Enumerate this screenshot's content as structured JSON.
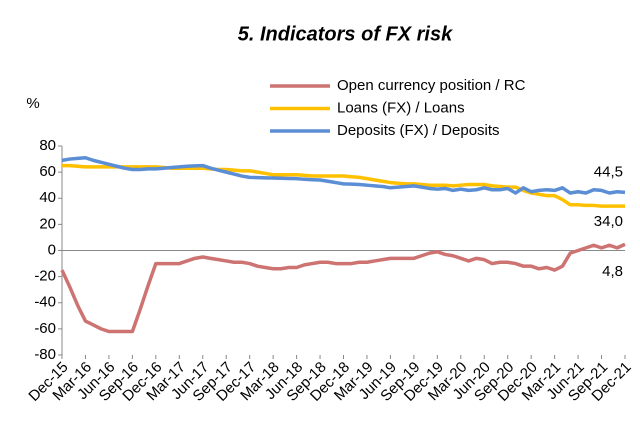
{
  "chart_data": {
    "type": "line",
    "title": "5. Indicators of FX risk",
    "y_label": "%",
    "categories": [
      "Dec-15",
      null,
      null,
      "Mar-16",
      null,
      null,
      "Jun-16",
      null,
      null,
      "Sep-16",
      null,
      null,
      "Dec-16",
      null,
      null,
      "Mar-17",
      null,
      null,
      "Jun-17",
      null,
      null,
      "Sep-17",
      null,
      null,
      "Dec-17",
      null,
      null,
      "Mar-18",
      null,
      null,
      "Jun-18",
      null,
      null,
      "Sep-18",
      null,
      null,
      "Dec-18",
      null,
      null,
      "Mar-19",
      null,
      null,
      "Jun-19",
      null,
      null,
      "Sep-19",
      null,
      null,
      "Dec-19",
      null,
      null,
      "Mar-20",
      null,
      null,
      "Jun-20",
      null,
      null,
      "Sep-20",
      null,
      null,
      "Dec-20",
      null,
      null,
      "Mar-21",
      null,
      null,
      "Jun-21",
      null,
      null,
      "Sep-21",
      null,
      null,
      "Dec-21"
    ],
    "series": [
      {
        "name": "Open currency position / RC",
        "color": "#cd7371",
        "values": [
          -15,
          -28,
          -42,
          -54,
          -57,
          -60,
          -62,
          -62,
          -62,
          -62,
          -45,
          -27,
          -10,
          -10,
          -10,
          -10,
          -8,
          -6,
          -5,
          -6,
          -7,
          -8,
          -9,
          -9,
          -10,
          -12,
          -13,
          -14,
          -14,
          -13,
          -13,
          -11,
          -10,
          -9,
          -9,
          -10,
          -10,
          -10,
          -9,
          -9,
          -8,
          -7,
          -6,
          -6,
          -6,
          -6,
          -4,
          -2,
          -1,
          -3,
          -4,
          -6,
          -8,
          -6,
          -7,
          -10,
          -9,
          -9,
          -10,
          -12,
          -12,
          -14,
          -13,
          -15,
          -12,
          -2,
          0,
          2,
          4,
          2,
          4,
          2,
          4.8
        ],
        "value_labels": [
          null,
          null,
          null,
          null,
          null,
          null,
          null,
          null,
          null,
          null,
          null,
          null,
          null,
          null,
          null,
          null,
          null,
          null,
          null,
          null,
          null,
          null,
          null,
          null,
          null,
          null,
          null,
          null,
          null,
          null,
          null,
          null,
          null,
          null,
          null,
          null,
          null,
          null,
          null,
          null,
          null,
          null,
          null,
          null,
          null,
          null,
          null,
          null,
          null,
          null,
          null,
          null,
          null,
          null,
          null,
          null,
          null,
          null,
          null,
          null,
          null,
          null,
          null,
          null,
          null,
          null,
          null,
          null,
          null,
          null,
          null,
          null,
          "4,8"
        ]
      },
      {
        "name": "Loans (FX) / Loans",
        "color": "#ffc000",
        "values": [
          65,
          65,
          64.5,
          64,
          64,
          64,
          64,
          64,
          64,
          64,
          64,
          64,
          64,
          63.5,
          63,
          63,
          63,
          63,
          63,
          62.5,
          62,
          62,
          61.5,
          61,
          61,
          60,
          59,
          58,
          58,
          58,
          58,
          57.5,
          57,
          57,
          57,
          57,
          57,
          56.5,
          56,
          55,
          54,
          53,
          52,
          51.5,
          51,
          51,
          50.5,
          50,
          50,
          50,
          49.5,
          50,
          50.5,
          50.5,
          50.5,
          49.5,
          49,
          48.5,
          48.5,
          46,
          44,
          43,
          42,
          42,
          39,
          35,
          35,
          34.5,
          34.5,
          34,
          34,
          34,
          34.0
        ],
        "value_labels": [
          null,
          null,
          null,
          null,
          null,
          null,
          null,
          null,
          null,
          null,
          null,
          null,
          null,
          null,
          null,
          null,
          null,
          null,
          null,
          null,
          null,
          null,
          null,
          null,
          null,
          null,
          null,
          null,
          null,
          null,
          null,
          null,
          null,
          null,
          null,
          null,
          null,
          null,
          null,
          null,
          null,
          null,
          null,
          null,
          null,
          null,
          null,
          null,
          null,
          null,
          null,
          null,
          null,
          null,
          null,
          null,
          null,
          null,
          null,
          null,
          null,
          null,
          null,
          null,
          null,
          null,
          null,
          null,
          null,
          null,
          null,
          null,
          "34,0"
        ]
      },
      {
        "name": "Deposits (FX) / Deposits",
        "color": "#5b8ed4",
        "values": [
          69,
          70,
          70.5,
          71,
          69,
          67.5,
          66,
          64.5,
          63,
          62,
          62,
          62.5,
          62.5,
          63,
          63.5,
          64,
          64.5,
          64.8,
          65,
          63,
          61.5,
          60,
          58.5,
          57,
          56,
          55.8,
          55.6,
          55.5,
          55.3,
          55.1,
          55,
          54.5,
          54.2,
          54,
          53,
          52,
          51,
          50.8,
          50.5,
          50,
          49.5,
          49,
          48,
          48.5,
          49,
          49.5,
          48.5,
          47.5,
          47,
          47.5,
          46,
          47,
          46,
          46.5,
          48,
          46.5,
          46.5,
          47.5,
          44,
          48,
          45,
          46,
          46.5,
          46,
          48,
          44,
          45,
          44,
          46.5,
          46,
          44,
          45,
          44.5
        ],
        "value_labels": [
          null,
          null,
          null,
          null,
          null,
          null,
          null,
          null,
          null,
          null,
          null,
          null,
          null,
          null,
          null,
          null,
          null,
          null,
          null,
          null,
          null,
          null,
          null,
          null,
          null,
          null,
          null,
          null,
          null,
          null,
          null,
          null,
          null,
          null,
          null,
          null,
          null,
          null,
          null,
          null,
          null,
          null,
          null,
          null,
          null,
          null,
          null,
          null,
          null,
          null,
          null,
          null,
          null,
          null,
          null,
          null,
          null,
          null,
          null,
          null,
          null,
          null,
          null,
          null,
          null,
          null,
          null,
          null,
          null,
          null,
          null,
          null,
          "44,5"
        ]
      }
    ],
    "ylim": [
      -80,
      80
    ],
    "yticks": [
      -80,
      -60,
      -40,
      -20,
      0,
      20,
      40,
      60,
      80
    ],
    "legend": "top-right"
  }
}
